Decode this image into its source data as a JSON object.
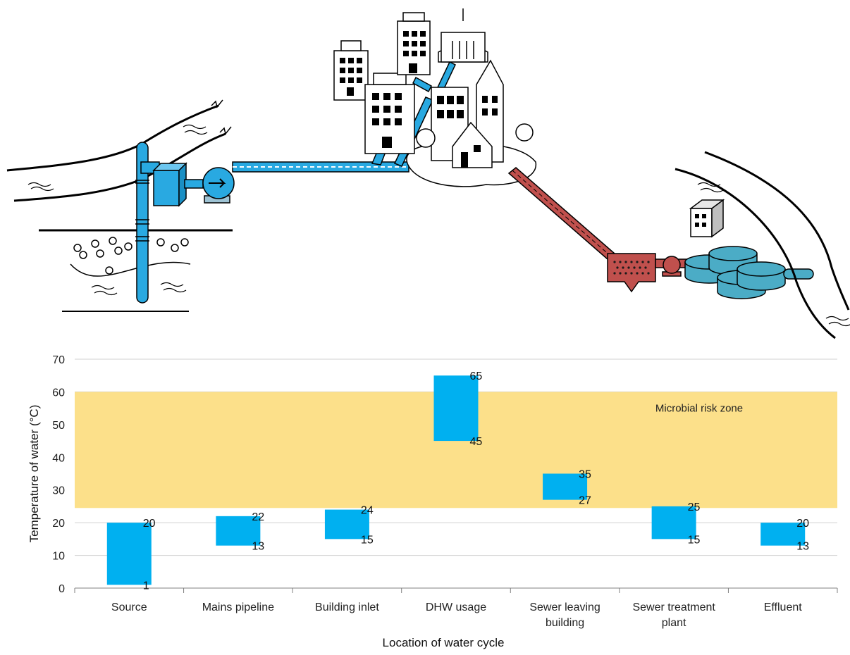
{
  "illustration": {
    "elements": [
      "river-source",
      "groundwater-well",
      "treatment-box",
      "supply-pump",
      "supply-main",
      "city-buildings",
      "sewer-main",
      "sewer-screen",
      "sewer-pump",
      "treatment-tanks",
      "control-building",
      "receiving-river"
    ]
  },
  "colors": {
    "supply": "#29a9e1",
    "sewer": "#c0504d",
    "bar": "#00b0f0",
    "risk_zone": "#fce08a",
    "tanks": "#4bacc6"
  },
  "chart_data": {
    "type": "bar",
    "subtype": "floating-range",
    "categories": [
      [
        "Source"
      ],
      [
        "Mains pipeline"
      ],
      [
        "Building inlet"
      ],
      [
        "DHW usage"
      ],
      [
        "Sewer leaving",
        "building"
      ],
      [
        "Sewer treatment",
        "plant"
      ],
      [
        "Effluent"
      ]
    ],
    "low": [
      1,
      13,
      15,
      45,
      27,
      15,
      13
    ],
    "high": [
      20,
      22,
      24,
      65,
      35,
      25,
      20
    ],
    "xlabel": "Location of water cycle",
    "ylabel": "Temperature of water (°C)",
    "ylim": [
      0,
      70
    ],
    "yticks": [
      0,
      10,
      20,
      30,
      40,
      50,
      60,
      70
    ],
    "grid": true,
    "band": {
      "label": "Microbial risk zone",
      "from": 24.5,
      "to": 60
    }
  }
}
